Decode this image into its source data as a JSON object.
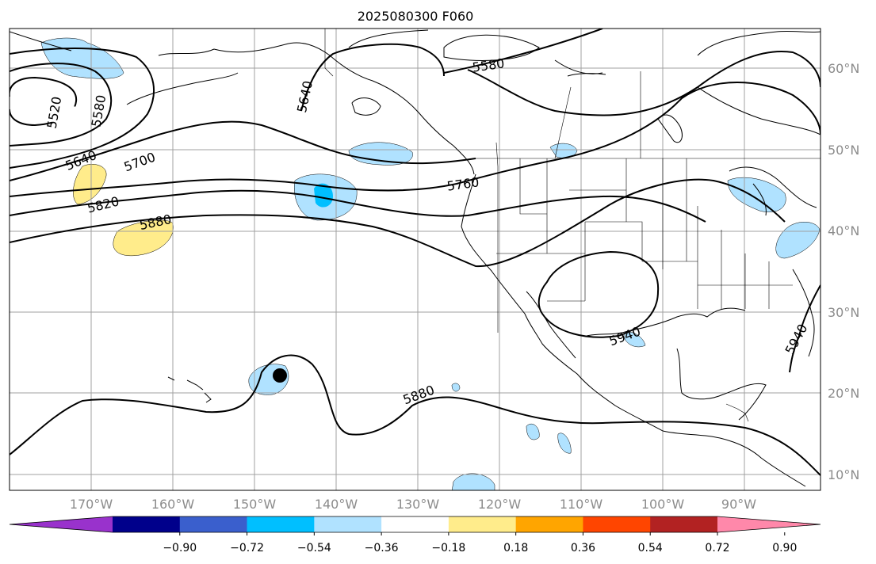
{
  "title": "2025080300 F060",
  "map": {
    "lat_labels": [
      "60°N",
      "50°N",
      "40°N",
      "30°N",
      "20°N",
      "10°N"
    ],
    "lon_labels": [
      "170°W",
      "160°W",
      "150°W",
      "140°W",
      "130°W",
      "120°W",
      "110°W",
      "100°W",
      "90°W"
    ],
    "contour_labels": [
      "5520",
      "5580",
      "5640",
      "5700",
      "5640",
      "5580",
      "5760",
      "5820",
      "5880",
      "5880",
      "5940",
      "5940"
    ],
    "storm_marker": "filled-circle",
    "line_color": "#000000",
    "grid_color": "#a0a0a0"
  },
  "colorbar": {
    "colors": [
      "#9932CC",
      "#00008B",
      "#3A5FCD",
      "#00BFFF",
      "#B0E2FF",
      "#FFFFFF",
      "#FFEC8B",
      "#FFA500",
      "#FF4500",
      "#B22222",
      "#FF88AA"
    ],
    "tick_labels": [
      "−0.90",
      "−0.72",
      "−0.54",
      "−0.36",
      "−0.18",
      "0.18",
      "0.36",
      "0.54",
      "0.72",
      "0.90"
    ],
    "extend": "both"
  }
}
